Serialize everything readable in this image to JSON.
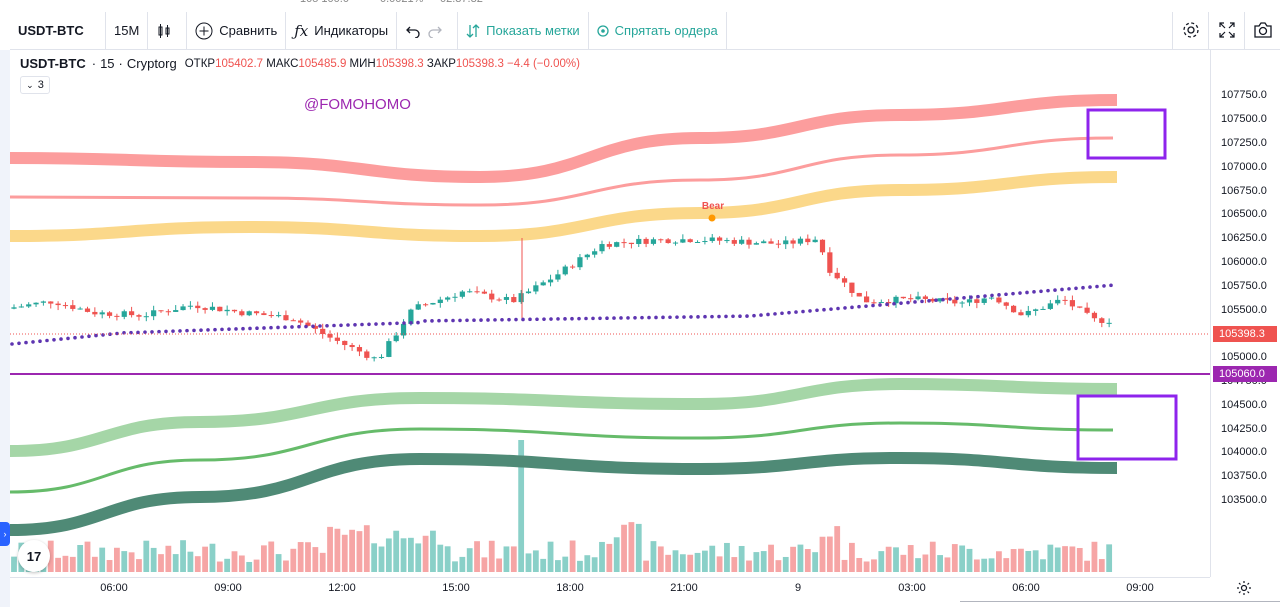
{
  "toolbar": {
    "symbol": "USDT-BTC",
    "interval": "15M",
    "compare_label": "Сравнить",
    "indicators_label": "Индикаторы",
    "show_marks_label": "Показать метки",
    "hide_orders_label": "Спрятать ордера"
  },
  "legend": {
    "symbol": "USDT-BTC",
    "interval": "15",
    "exchange": "Cryptorg",
    "open_label": "ОТКР",
    "open": "105402.7",
    "high_label": "МАКС",
    "high": "105485.9",
    "low_label": "МИН",
    "low": "105398.3",
    "close_label": "ЗАКР",
    "close": "105398.3",
    "change": "−4.4 (−0.00%)",
    "indicator_count": "3"
  },
  "watermark": "@FOMOHOMO",
  "annotation": "Bear",
  "price_scale": [
    "107750.0",
    "107500.0",
    "107250.0",
    "107000.0",
    "106750.0",
    "106500.0",
    "106250.0",
    "106000.0",
    "105750.0",
    "105500.0",
    "105250.0",
    "105000.0",
    "104750.0",
    "104500.0",
    "104250.0",
    "104000.0",
    "103750.0",
    "103500.0"
  ],
  "price_tags": {
    "last": "105398.3",
    "line": "105060.0"
  },
  "time_scale": [
    "06:00",
    "09:00",
    "12:00",
    "15:00",
    "18:00",
    "21:00",
    "9",
    "03:00",
    "06:00",
    "09:00"
  ],
  "colors": {
    "up": "#26a69a",
    "down": "#ef5350",
    "upper_band": "#fc9d9d",
    "mid_band": "#fbd88a",
    "lower_band_light": "#a5d6a7",
    "lower_band_mid": "#66bb6a",
    "lower_band_dark": "#4f8a76",
    "dots": "#5e35b1",
    "hline": "#9c27b0"
  }
}
